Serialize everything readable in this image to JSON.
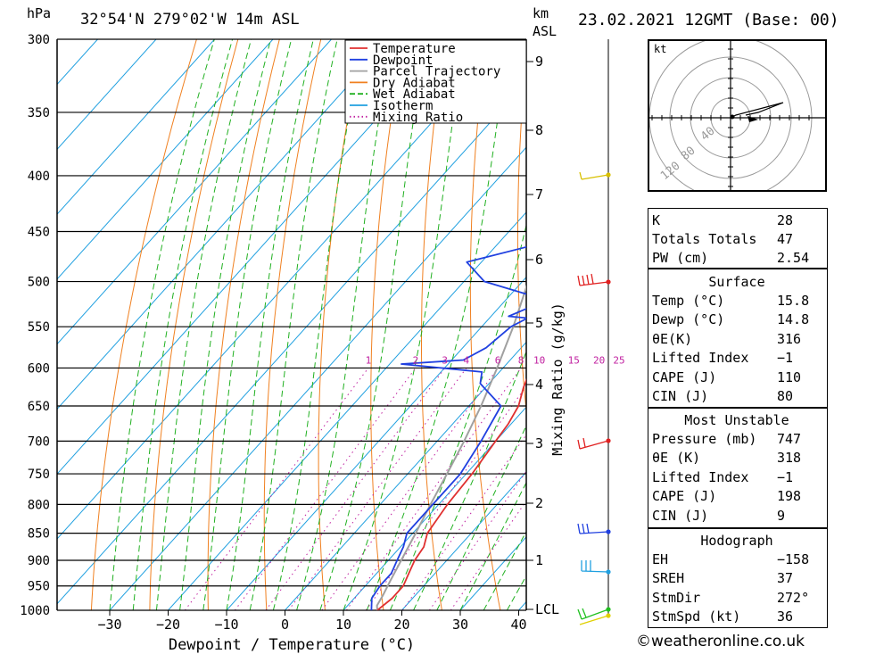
{
  "header": {
    "location": "32°54'N  279°02'W  14m  ASL",
    "datetime": "23.02.2021  12GMT  (Base: 00)",
    "pressure_unit": "hPa",
    "height_unit_line1": "km",
    "height_unit_line2": "ASL"
  },
  "chart_data": {
    "type": "line",
    "xlabel": "Dewpoint / Temperature (°C)",
    "x_ticks": [
      -30,
      -20,
      -10,
      0,
      10,
      20,
      30,
      40
    ],
    "pressure_levels": [
      300,
      350,
      400,
      450,
      500,
      550,
      600,
      650,
      700,
      750,
      800,
      850,
      900,
      950,
      1000
    ],
    "height_km_ticks": [
      "9",
      "8",
      "7",
      "6",
      "5",
      "4",
      "3",
      "2",
      "1",
      "LCL"
    ],
    "mixing_ratio_axis_label": "Mixing Ratio (g/kg)",
    "mixing_ratio_labels": [
      "1",
      "2",
      "3",
      "4",
      "6",
      "8",
      "10",
      "15",
      "20",
      "25"
    ],
    "legend": [
      "Temperature",
      "Dewpoint",
      "Parcel Trajectory",
      "Dry Adiabat",
      "Wet Adiabat",
      "Isotherm",
      "Mixing Ratio"
    ],
    "colors": {
      "temperature": "#e03030",
      "dewpoint": "#2040e0",
      "parcel": "#a0a0a0",
      "dry_adiabat": "#f08020",
      "wet_adiabat": "#20b020",
      "isotherm": "#20a0e0",
      "mixing_ratio": "#c020a0"
    },
    "series": [
      {
        "name": "Temperature",
        "points": [
          [
            1000,
            15.8
          ],
          [
            975,
            16.5
          ],
          [
            950,
            16.5
          ],
          [
            925,
            15.5
          ],
          [
            900,
            14.5
          ],
          [
            875,
            14.0
          ],
          [
            850,
            12.5
          ],
          [
            800,
            11.5
          ],
          [
            750,
            11.0
          ],
          [
            700,
            10.0
          ],
          [
            675,
            9.5
          ],
          [
            650,
            8.5
          ],
          [
            625,
            6.5
          ],
          [
            610,
            5.5
          ],
          [
            600,
            5.0
          ],
          [
            580,
            4.5
          ],
          [
            550,
            4.5
          ],
          [
            525,
            4.5
          ],
          [
            510,
            4.0
          ],
          [
            500,
            3.5
          ],
          [
            480,
            3.5
          ],
          [
            450,
            3.0
          ],
          [
            430,
            2.0
          ],
          [
            400,
            2.0
          ],
          [
            370,
            0.0
          ],
          [
            350,
            -1.0
          ],
          [
            330,
            -2.0
          ],
          [
            300,
            -3.0
          ]
        ]
      },
      {
        "name": "Dewpoint",
        "points": [
          [
            1000,
            14.8
          ],
          [
            975,
            13.0
          ],
          [
            950,
            12.5
          ],
          [
            925,
            12.5
          ],
          [
            900,
            11.5
          ],
          [
            875,
            10.5
          ],
          [
            850,
            9.0
          ],
          [
            800,
            9.0
          ],
          [
            750,
            9.0
          ],
          [
            700,
            7.5
          ],
          [
            650,
            5.5
          ],
          [
            620,
            -1.5
          ],
          [
            605,
            -3.0
          ],
          [
            595,
            -18.0
          ],
          [
            590,
            -8.0
          ],
          [
            575,
            -6.0
          ],
          [
            550,
            -5.0
          ],
          [
            540,
            -3.5
          ],
          [
            538,
            -7.0
          ],
          [
            520,
            -3.0
          ],
          [
            500,
            -16.5
          ],
          [
            480,
            -22.5
          ],
          [
            460,
            -12.0
          ],
          [
            445,
            -11.0
          ],
          [
            430,
            -10.5
          ],
          [
            415,
            -15.0
          ],
          [
            400,
            -14.0
          ],
          [
            370,
            -14.5
          ],
          [
            350,
            -16.0
          ],
          [
            345,
            -14.0
          ],
          [
            340,
            -6.0
          ],
          [
            333,
            -5.0
          ],
          [
            325,
            -5.0
          ],
          [
            320,
            -12.0
          ],
          [
            312,
            -15.0
          ],
          [
            308,
            -15.0
          ],
          [
            300,
            -20.0
          ]
        ]
      },
      {
        "name": "Parcel Trajectory",
        "points": [
          [
            1000,
            15.8
          ],
          [
            990,
            15.0
          ],
          [
            970,
            14.5
          ],
          [
            940,
            13.5
          ],
          [
            900,
            12.2
          ],
          [
            850,
            10.5
          ],
          [
            800,
            8.6
          ],
          [
            747,
            6.6
          ],
          [
            700,
            4.6
          ],
          [
            650,
            2.1
          ],
          [
            600,
            -1.0
          ],
          [
            550,
            -4.6
          ],
          [
            500,
            -9.0
          ],
          [
            450,
            -14.0
          ],
          [
            400,
            -20.0
          ],
          [
            350,
            -27.0
          ],
          [
            320,
            -32.0
          ],
          [
            300,
            -36.0
          ]
        ]
      }
    ],
    "wind_barb_levels": [
      400,
      500,
      700,
      850,
      925,
      1000
    ]
  },
  "hodograph": {
    "unit": "kt",
    "ring_labels": [
      "40",
      "80",
      "120"
    ]
  },
  "indices": {
    "general": [
      {
        "label": "K",
        "value": "28"
      },
      {
        "label": "Totals Totals",
        "value": "47"
      },
      {
        "label": "PW (cm)",
        "value": "2.54"
      }
    ],
    "surface_title": "Surface",
    "surface": [
      {
        "label": "Temp (°C)",
        "value": "15.8"
      },
      {
        "label": "Dewp (°C)",
        "value": "14.8"
      },
      {
        "label": "θE(K)",
        "value": "316"
      },
      {
        "label": "Lifted Index",
        "value": "−1"
      },
      {
        "label": "CAPE (J)",
        "value": "110"
      },
      {
        "label": "CIN (J)",
        "value": "80"
      }
    ],
    "most_unstable_title": "Most Unstable",
    "most_unstable": [
      {
        "label": "Pressure (mb)",
        "value": "747"
      },
      {
        "label": "θE (K)",
        "value": "318"
      },
      {
        "label": "Lifted Index",
        "value": "−1"
      },
      {
        "label": "CAPE (J)",
        "value": "198"
      },
      {
        "label": "CIN (J)",
        "value": "9"
      }
    ],
    "hodograph_title": "Hodograph",
    "hodograph": [
      {
        "label": "EH",
        "value": "−158"
      },
      {
        "label": "SREH",
        "value": "37"
      },
      {
        "label": "StmDir",
        "value": "272°"
      },
      {
        "label": "StmSpd (kt)",
        "value": "36"
      }
    ]
  },
  "footer": {
    "credit": "©weatheronline.co.uk"
  }
}
